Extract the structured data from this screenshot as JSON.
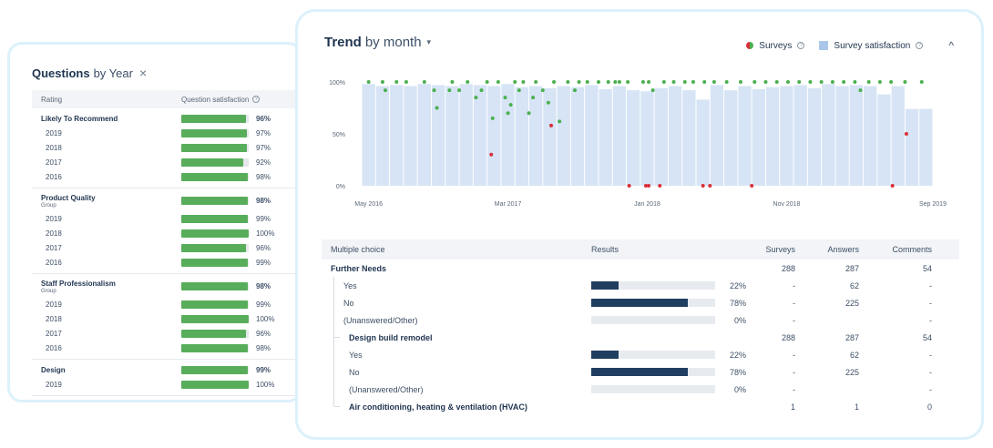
{
  "questions_panel": {
    "title": "Questions",
    "subtitle": "by Year",
    "close_glyph": "×",
    "header": {
      "rating": "Rating",
      "satisfaction": "Question satisfaction",
      "info_glyph": "?"
    },
    "groups": [
      {
        "name": "Likely To Recommend",
        "group_label": "",
        "value": 96,
        "pct": "96%",
        "years": [
          {
            "year": "2019",
            "value": 97,
            "pct": "97%"
          },
          {
            "year": "2018",
            "value": 97,
            "pct": "97%"
          },
          {
            "year": "2017",
            "value": 92,
            "pct": "92%"
          },
          {
            "year": "2016",
            "value": 98,
            "pct": "98%"
          }
        ]
      },
      {
        "name": "Product Quality",
        "group_label": "Group",
        "value": 98,
        "pct": "98%",
        "years": [
          {
            "year": "2019",
            "value": 99,
            "pct": "99%"
          },
          {
            "year": "2018",
            "value": 100,
            "pct": "100%"
          },
          {
            "year": "2017",
            "value": 96,
            "pct": "96%"
          },
          {
            "year": "2016",
            "value": 99,
            "pct": "99%"
          }
        ]
      },
      {
        "name": "Staff Professionalism",
        "group_label": "Group",
        "value": 98,
        "pct": "98%",
        "years": [
          {
            "year": "2019",
            "value": 99,
            "pct": "99%"
          },
          {
            "year": "2018",
            "value": 100,
            "pct": "100%"
          },
          {
            "year": "2017",
            "value": 96,
            "pct": "96%"
          },
          {
            "year": "2016",
            "value": 98,
            "pct": "98%"
          }
        ]
      },
      {
        "name": "Design",
        "group_label": "",
        "value": 99,
        "pct": "99%",
        "years": [
          {
            "year": "2019",
            "value": 100,
            "pct": "100%"
          }
        ]
      }
    ]
  },
  "trend": {
    "title": "Trend",
    "subtitle": "by month",
    "caret_glyph": "▾",
    "legend": {
      "surveys": "Surveys",
      "satisfaction": "Survey satisfaction",
      "info_glyph": "?",
      "collapse_glyph": "^"
    },
    "colors": {
      "bar": "#d6e4f5",
      "green": "#4caf50",
      "red": "#d9303a",
      "axis_text": "#5a6778"
    }
  },
  "chart_data": {
    "type": "bar",
    "y_ticks": [
      "0%",
      "50%",
      "100%"
    ],
    "ylim": [
      0,
      100
    ],
    "x_ticks": [
      {
        "index": 0,
        "label": "May 2016"
      },
      {
        "index": 10,
        "label": "Mar 2017"
      },
      {
        "index": 20,
        "label": "Jan 2018"
      },
      {
        "index": 30,
        "label": "Nov 2018"
      },
      {
        "index": 40,
        "label": "Sep 2019"
      }
    ],
    "series": [
      {
        "name": "Survey satisfaction",
        "values": [
          98,
          96,
          97,
          96,
          98,
          97,
          96,
          98,
          97,
          96,
          98,
          95,
          96,
          94,
          96,
          95,
          97,
          93,
          96,
          92,
          91,
          94,
          96,
          92,
          83,
          97,
          92,
          96,
          93,
          95,
          96,
          97,
          94,
          98,
          96,
          97,
          96,
          88,
          96,
          74,
          74
        ]
      }
    ],
    "surveys_green": [
      {
        "x": 0.5,
        "y": 100
      },
      {
        "x": 1.5,
        "y": 100
      },
      {
        "x": 1.7,
        "y": 92
      },
      {
        "x": 2.5,
        "y": 100
      },
      {
        "x": 3.2,
        "y": 100
      },
      {
        "x": 4.5,
        "y": 100
      },
      {
        "x": 5.2,
        "y": 92
      },
      {
        "x": 5.4,
        "y": 75
      },
      {
        "x": 6.5,
        "y": 100
      },
      {
        "x": 6.3,
        "y": 92
      },
      {
        "x": 7.0,
        "y": 92
      },
      {
        "x": 7.6,
        "y": 100
      },
      {
        "x": 8.2,
        "y": 85
      },
      {
        "x": 8.6,
        "y": 92
      },
      {
        "x": 9.0,
        "y": 100
      },
      {
        "x": 9.4,
        "y": 65
      },
      {
        "x": 9.8,
        "y": 100
      },
      {
        "x": 10.3,
        "y": 85
      },
      {
        "x": 10.5,
        "y": 70
      },
      {
        "x": 10.7,
        "y": 78
      },
      {
        "x": 11.0,
        "y": 100
      },
      {
        "x": 11.3,
        "y": 92
      },
      {
        "x": 11.6,
        "y": 100
      },
      {
        "x": 12.0,
        "y": 70
      },
      {
        "x": 12.3,
        "y": 85
      },
      {
        "x": 12.5,
        "y": 100
      },
      {
        "x": 13.0,
        "y": 92
      },
      {
        "x": 13.4,
        "y": 80
      },
      {
        "x": 13.8,
        "y": 100
      },
      {
        "x": 14.2,
        "y": 62
      },
      {
        "x": 14.8,
        "y": 100
      },
      {
        "x": 15.3,
        "y": 92
      },
      {
        "x": 15.6,
        "y": 100
      },
      {
        "x": 16.2,
        "y": 100
      },
      {
        "x": 17.0,
        "y": 100
      },
      {
        "x": 17.7,
        "y": 100
      },
      {
        "x": 18.2,
        "y": 100
      },
      {
        "x": 18.5,
        "y": 100
      },
      {
        "x": 19.1,
        "y": 100
      },
      {
        "x": 20.2,
        "y": 100
      },
      {
        "x": 20.6,
        "y": 100
      },
      {
        "x": 20.9,
        "y": 92
      },
      {
        "x": 21.7,
        "y": 100
      },
      {
        "x": 22.4,
        "y": 100
      },
      {
        "x": 23.2,
        "y": 100
      },
      {
        "x": 23.8,
        "y": 100
      },
      {
        "x": 24.6,
        "y": 100
      },
      {
        "x": 25.3,
        "y": 100
      },
      {
        "x": 26.2,
        "y": 100
      },
      {
        "x": 27.2,
        "y": 100
      },
      {
        "x": 28.2,
        "y": 100
      },
      {
        "x": 29.0,
        "y": 100
      },
      {
        "x": 29.8,
        "y": 100
      },
      {
        "x": 30.6,
        "y": 100
      },
      {
        "x": 31.4,
        "y": 100
      },
      {
        "x": 32.2,
        "y": 100
      },
      {
        "x": 33.0,
        "y": 100
      },
      {
        "x": 33.8,
        "y": 100
      },
      {
        "x": 34.6,
        "y": 100
      },
      {
        "x": 35.4,
        "y": 100
      },
      {
        "x": 35.8,
        "y": 92
      },
      {
        "x": 36.4,
        "y": 100
      },
      {
        "x": 37.2,
        "y": 100
      },
      {
        "x": 38.0,
        "y": 100
      },
      {
        "x": 39.0,
        "y": 100
      },
      {
        "x": 40.2,
        "y": 100
      }
    ],
    "surveys_red": [
      {
        "x": 9.3,
        "y": 30
      },
      {
        "x": 13.6,
        "y": 58
      },
      {
        "x": 19.2,
        "y": 0
      },
      {
        "x": 20.4,
        "y": 0
      },
      {
        "x": 20.6,
        "y": 0
      },
      {
        "x": 21.4,
        "y": 0
      },
      {
        "x": 24.5,
        "y": 0
      },
      {
        "x": 25.0,
        "y": 0
      },
      {
        "x": 28.0,
        "y": 0
      },
      {
        "x": 38.1,
        "y": 0
      },
      {
        "x": 39.1,
        "y": 50
      }
    ]
  },
  "multiple_choice": {
    "headers": {
      "label": "Multiple choice",
      "results": "Results",
      "surveys": "Surveys",
      "answers": "Answers",
      "comments": "Comments"
    },
    "rows": [
      {
        "kind": "bold",
        "label": "Further Needs",
        "surveys": "288",
        "answers": "287",
        "comments": "54"
      },
      {
        "kind": "sub",
        "label": "Yes",
        "value": 22,
        "pct": "22%",
        "surveys": "-",
        "answers": "62",
        "comments": "-"
      },
      {
        "kind": "sub",
        "label": "No",
        "value": 78,
        "pct": "78%",
        "surveys": "-",
        "answers": "225",
        "comments": "-"
      },
      {
        "kind": "sub",
        "label": "(Unanswered/Other)",
        "value": 0,
        "pct": "0%",
        "surveys": "-",
        "answers": "",
        "comments": "-"
      },
      {
        "kind": "nested",
        "label": "Design build remodel",
        "surveys": "288",
        "answers": "287",
        "comments": "54"
      },
      {
        "kind": "sub2",
        "label": "Yes",
        "value": 22,
        "pct": "22%",
        "surveys": "-",
        "answers": "62",
        "comments": "-"
      },
      {
        "kind": "sub2",
        "label": "No",
        "value": 78,
        "pct": "78%",
        "surveys": "-",
        "answers": "225",
        "comments": "-"
      },
      {
        "kind": "sub2",
        "label": "(Unanswered/Other)",
        "value": 0,
        "pct": "0%",
        "surveys": "-",
        "answers": "",
        "comments": "-"
      },
      {
        "kind": "nested",
        "label": "Air conditioning, heating & ventilation (HVAC)",
        "surveys": "1",
        "answers": "1",
        "comments": "0"
      }
    ]
  }
}
